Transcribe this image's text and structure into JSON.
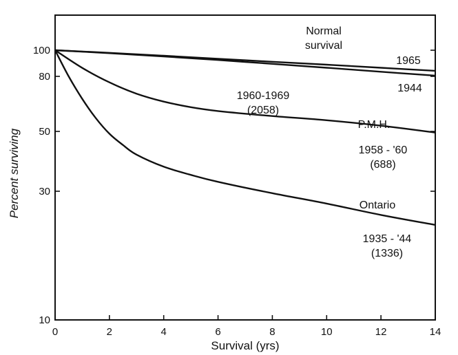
{
  "chart_data": {
    "type": "line",
    "xlabel": "Survival (yrs)",
    "ylabel": "Percent surviving",
    "xlim": [
      0,
      14
    ],
    "ylim": [
      10,
      100
    ],
    "yscale": "log",
    "grid": false,
    "xticks": [
      0,
      2,
      4,
      6,
      8,
      10,
      12,
      14
    ],
    "xtick_labels": [
      "0",
      "2",
      "4",
      "6",
      "8",
      "10",
      "12",
      "14"
    ],
    "yticks": [
      10,
      30,
      50,
      80,
      100
    ],
    "ytick_labels": [
      "10",
      "30",
      "50",
      "80",
      "100"
    ],
    "series": [
      {
        "x": [
          0,
          2,
          4,
          6,
          8,
          10,
          12,
          14
        ],
        "y": [
          100,
          97.8,
          95.4,
          93,
          90.6,
          88.4,
          86.1,
          83.9
        ]
      },
      {
        "x": [
          0,
          2,
          4,
          6,
          8,
          10,
          12,
          14
        ],
        "y": [
          100,
          97.5,
          94.8,
          92,
          89,
          86.1,
          83.2,
          80.5
        ]
      },
      {
        "x": [
          0,
          1,
          2,
          3,
          4,
          5,
          6,
          8,
          10,
          12,
          14
        ],
        "y": [
          100,
          86,
          76,
          69,
          64.5,
          61.5,
          59.5,
          57,
          55,
          52.5,
          49.5
        ]
      },
      {
        "x": [
          0,
          0.5,
          1,
          1.5,
          2,
          2.5,
          3,
          4,
          5,
          6,
          8,
          10,
          12,
          14
        ],
        "y": [
          100,
          80,
          66,
          56,
          49,
          44.5,
          41,
          37,
          34.5,
          32.5,
          29.5,
          27,
          24.5,
          22.5
        ]
      }
    ],
    "annotations": [
      {
        "id": "normal",
        "lines": [
          "Normal",
          "survival"
        ]
      },
      {
        "id": "y1965",
        "lines": [
          "1965"
        ]
      },
      {
        "id": "y1944",
        "lines": [
          "1944"
        ]
      },
      {
        "id": "pmh_decade",
        "lines": [
          "1960-1969",
          "(2058)"
        ]
      },
      {
        "id": "pmh",
        "lines": [
          "P.M.H."
        ]
      },
      {
        "id": "pmh_base",
        "lines": [
          "1958 - '60",
          "(688)"
        ]
      },
      {
        "id": "ontario",
        "lines": [
          "Ontario"
        ]
      },
      {
        "id": "ontario_years",
        "lines": [
          "1935 - '44",
          "(1336)"
        ]
      }
    ]
  }
}
